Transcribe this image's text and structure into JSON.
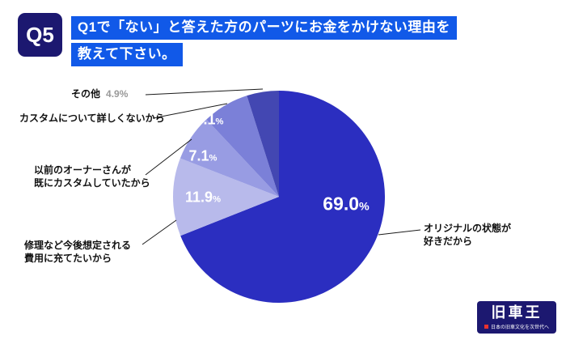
{
  "header": {
    "badge": "Q5",
    "title_line1": "Q1で「ない」と答えた方のパーツにお金をかけない理由を",
    "title_line2": "教えて下さい。"
  },
  "chart_data": {
    "type": "pie",
    "title": "Q1で「ない」と答えた方のパーツにお金をかけない理由",
    "labels": [
      "オリジナルの状態が好きだから",
      "修理など今後想定される費用に充てたいから",
      "以前のオーナーさんが既にカスタムしていたから",
      "カスタムについて詳しくないから",
      "その他"
    ],
    "values": [
      69.0,
      11.9,
      7.1,
      7.1,
      4.9
    ],
    "values_str": [
      "69.0",
      "11.9",
      "7.1",
      "7.1",
      "4.9"
    ],
    "percent_sign": "%",
    "colors": [
      "#2b2ec0",
      "#b8baeb",
      "#989ce3",
      "#7b80d8",
      "#4347b2"
    ],
    "start_angle_deg": -90,
    "direction": "clockwise",
    "legend": "none"
  },
  "callouts": [
    {
      "lines": [
        "その他"
      ],
      "value": "4.9%"
    },
    {
      "lines": [
        "カスタムについて詳しくないから"
      ]
    },
    {
      "lines": [
        "以前のオーナーさんが",
        "既にカスタムしていたから"
      ]
    },
    {
      "lines": [
        "修理など今後想定される",
        "費用に充てたいから"
      ]
    },
    {
      "lines": [
        "オリジナルの状態が",
        "好きだから"
      ]
    }
  ],
  "logo": {
    "name": "旧車王",
    "tagline": "日本の旧車文化を次世代へ"
  }
}
